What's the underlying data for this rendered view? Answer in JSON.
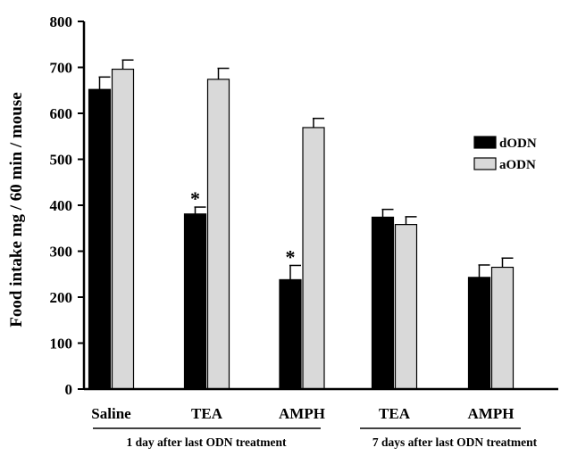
{
  "chart_data": {
    "type": "bar",
    "title": "",
    "xlabel": "",
    "ylabel": "Food  intake mg / 60 min / mouse",
    "ylim": [
      0,
      800
    ],
    "yticks": [
      0,
      100,
      200,
      300,
      400,
      500,
      600,
      700,
      800
    ],
    "grid": false,
    "legend_position": "right",
    "categories": [
      "Saline",
      "TEA",
      "AMPH",
      "TEA",
      "AMPH"
    ],
    "groups": [
      {
        "label": "1 day after last ODN treatment",
        "categories": [
          0,
          1,
          2
        ]
      },
      {
        "label": "7 days after last ODN treatment",
        "categories": [
          3,
          4
        ]
      }
    ],
    "series": [
      {
        "name": "dODN",
        "color": "#000000",
        "values": [
          652,
          381,
          238,
          374,
          243
        ],
        "errors": [
          27,
          15,
          31,
          17,
          27
        ],
        "annotations": [
          "",
          "*",
          "*",
          "",
          ""
        ]
      },
      {
        "name": "aODN",
        "color": "#d9d9d9",
        "values": [
          696,
          674,
          569,
          358,
          265
        ],
        "errors": [
          20,
          24,
          20,
          17,
          20
        ],
        "annotations": [
          "",
          "",
          "",
          "",
          ""
        ]
      }
    ]
  }
}
